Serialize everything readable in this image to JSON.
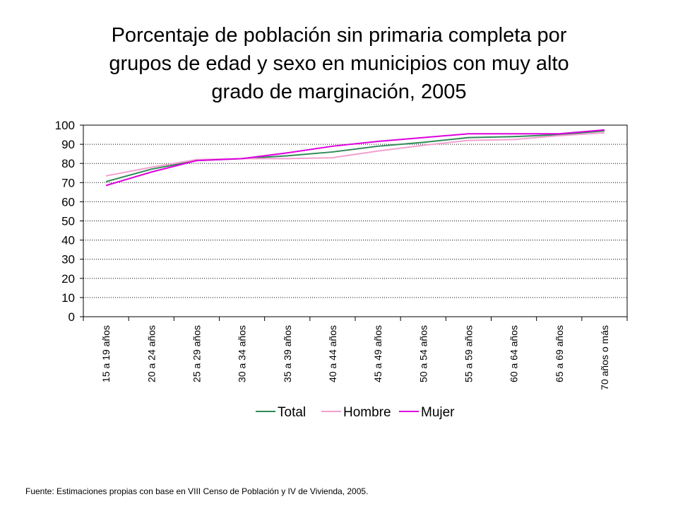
{
  "title_lines": [
    "Porcentaje de población sin primaria completa por",
    "grupos de edad y sexo en municipios con muy alto",
    "grado de marginación, 2005"
  ],
  "footnote": "Fuente: Estimaciones propias con base en VIII Censo de Población y IV de Vivienda, 2005.",
  "chart_data": {
    "type": "line",
    "title": "Porcentaje de población sin primaria completa por grupos de edad y sexo en municipios con muy alto grado de marginación, 2005",
    "xlabel": "",
    "ylabel": "",
    "ylim": [
      0,
      100
    ],
    "yticks": [
      0,
      10,
      20,
      30,
      40,
      50,
      60,
      70,
      80,
      90,
      100
    ],
    "grid": "horizontal dotted",
    "legend_position": "bottom",
    "categories": [
      "15 a 19 años",
      "20 a 24 años",
      "25 a 29 años",
      "30 a 34 años",
      "35 a 39 años",
      "40 a 44 años",
      "45 a 49 años",
      "50 a 54 años",
      "55 a 59 años",
      "60 a 64 años",
      "65 a 69 años",
      "70 años o más"
    ],
    "series": [
      {
        "name": "Total",
        "color": "#2e8b57",
        "values": [
          70.5,
          77,
          81.5,
          82.5,
          84,
          86,
          89,
          91,
          93.5,
          94,
          95,
          97
        ]
      },
      {
        "name": "Hombre",
        "color": "#f2a0cf",
        "values": [
          73.5,
          78,
          82,
          82.5,
          82.5,
          83,
          86.5,
          89.5,
          92,
          92.5,
          94.5,
          96
        ]
      },
      {
        "name": "Mujer",
        "color": "#dd00dd",
        "values": [
          68.5,
          75.5,
          81.5,
          82.5,
          85.5,
          89,
          91.5,
          93.5,
          95.5,
          95.5,
          95.5,
          97.5
        ]
      }
    ]
  }
}
